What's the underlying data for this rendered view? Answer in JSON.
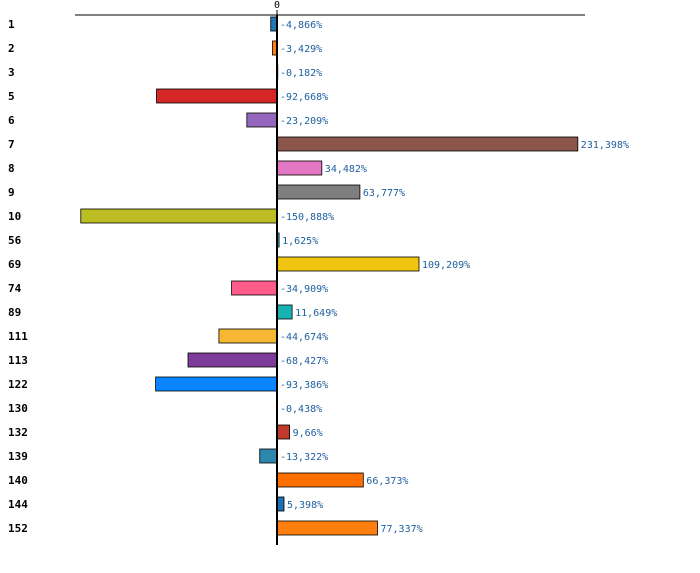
{
  "chart_data": {
    "type": "bar",
    "orientation": "horizontal",
    "zero_label": "0",
    "categories": [
      "1",
      "2",
      "3",
      "5",
      "6",
      "7",
      "8",
      "9",
      "10",
      "56",
      "69",
      "74",
      "89",
      "111",
      "113",
      "122",
      "130",
      "132",
      "139",
      "140",
      "144",
      "152"
    ],
    "values": [
      -4.866,
      -3.429,
      -0.182,
      -92.668,
      -23.209,
      231.398,
      34.482,
      63.777,
      -150.888,
      1.625,
      109.209,
      -34.909,
      11.649,
      -44.674,
      -68.427,
      -93.386,
      -0.438,
      9.66,
      -13.322,
      66.373,
      5.398,
      77.337
    ],
    "value_labels": [
      "-4,866%",
      "-3,429%",
      "-0,182%",
      "-92,668%",
      "-23,209%",
      "231,398%",
      "34,482%",
      "63,777%",
      "-150,888%",
      "1,625%",
      "109,209%",
      "-34,909%",
      "11,649%",
      "-44,674%",
      "-68,427%",
      "-93,386%",
      "-0,438%",
      "9,66%",
      "-13,322%",
      "66,373%",
      "5,398%",
      "77,337%"
    ],
    "colors": [
      "#1f77b4",
      "#ff7f0e",
      "#2ca02c",
      "#d62728",
      "#9467bd",
      "#8c564b",
      "#e377c2",
      "#7f7f7f",
      "#bcbd22",
      "#17becf",
      "#f1c40f",
      "#ff5c8a",
      "#17b3b3",
      "#f7b733",
      "#7d3c98",
      "#0a84ff",
      "#b0b0b0",
      "#c0392b",
      "#2e86ab",
      "#ff6f00",
      "#1f6fb5",
      "#ff7f0e"
    ],
    "value_label_color": "#1f5fa0",
    "xlim": [
      -155,
      235
    ],
    "grid": false,
    "legend": "none"
  }
}
